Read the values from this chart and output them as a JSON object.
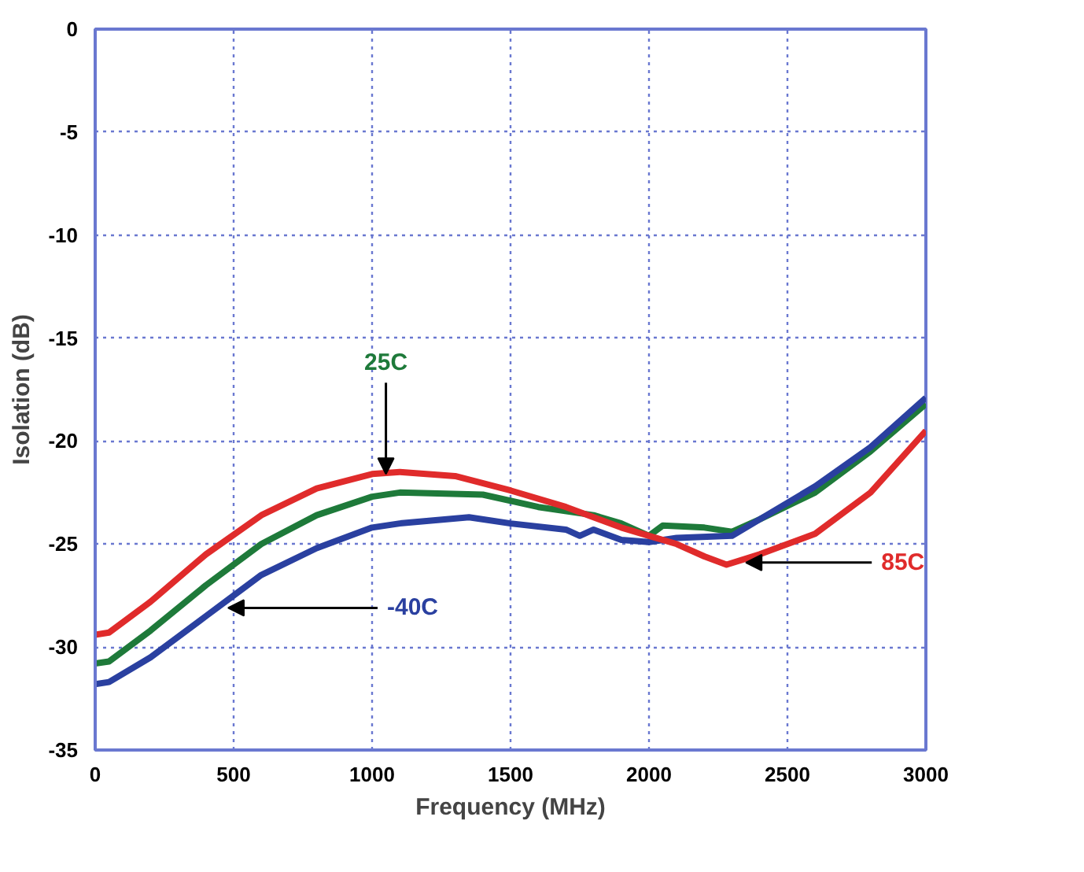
{
  "chart_data": {
    "type": "line",
    "xlabel": "Frequency (MHz)",
    "ylabel": "Isolation (dB)",
    "xlim": [
      0,
      3000
    ],
    "ylim": [
      -35,
      0
    ],
    "xticks": [
      0,
      500,
      1000,
      1500,
      2000,
      2500,
      3000
    ],
    "yticks": [
      -35,
      -30,
      -25,
      -20,
      -15,
      -10,
      -5,
      0
    ],
    "grid": true,
    "marker": "none",
    "line_style": "solid",
    "series": [
      {
        "color": "#1e7a3a",
        "x": [
          0,
          50,
          200,
          400,
          600,
          800,
          1000,
          1100,
          1400,
          1600,
          1800,
          1900,
          2000,
          2050,
          2200,
          2300,
          2400,
          2600,
          2800,
          3000
        ],
        "values": [
          -30.8,
          -30.7,
          -29.2,
          -27,
          -25,
          -23.6,
          -22.7,
          -22.5,
          -22.6,
          -23.2,
          -23.6,
          -24.0,
          -24.6,
          -24.1,
          -24.2,
          -24.4,
          -23.8,
          -22.5,
          -20.5,
          -18.2
        ]
      },
      {
        "color": "#2a40a0",
        "x": [
          0,
          50,
          200,
          400,
          600,
          800,
          1000,
          1100,
          1350,
          1500,
          1700,
          1750,
          1800,
          1900,
          2000,
          2100,
          2300,
          2400,
          2600,
          2800,
          3000
        ],
        "values": [
          -31.8,
          -31.7,
          -30.5,
          -28.5,
          -26.5,
          -25.2,
          -24.2,
          -24.0,
          -23.7,
          -24.0,
          -24.3,
          -24.6,
          -24.3,
          -24.8,
          -24.9,
          -24.7,
          -24.6,
          -23.8,
          -22.2,
          -20.3,
          -17.9
        ]
      },
      {
        "color": "#e02b2b",
        "x": [
          0,
          50,
          200,
          400,
          600,
          800,
          1000,
          1100,
          1300,
          1500,
          1700,
          1900,
          2000,
          2100,
          2200,
          2280,
          2400,
          2600,
          2800,
          3000
        ],
        "values": [
          -29.4,
          -29.3,
          -27.8,
          -25.5,
          -23.6,
          -22.3,
          -21.6,
          -21.5,
          -21.7,
          -22.4,
          -23.2,
          -24.2,
          -24.6,
          -25.0,
          -25.6,
          -26.0,
          -25.5,
          -24.5,
          -22.5,
          -19.5
        ]
      }
    ],
    "annotations": [
      {
        "text": "25C",
        "x": 1050,
        "y": -21.6
      },
      {
        "text": "-40C",
        "x": 480,
        "y": -28.1
      },
      {
        "text": "85C",
        "x": 2350,
        "y": -25.9
      }
    ]
  }
}
